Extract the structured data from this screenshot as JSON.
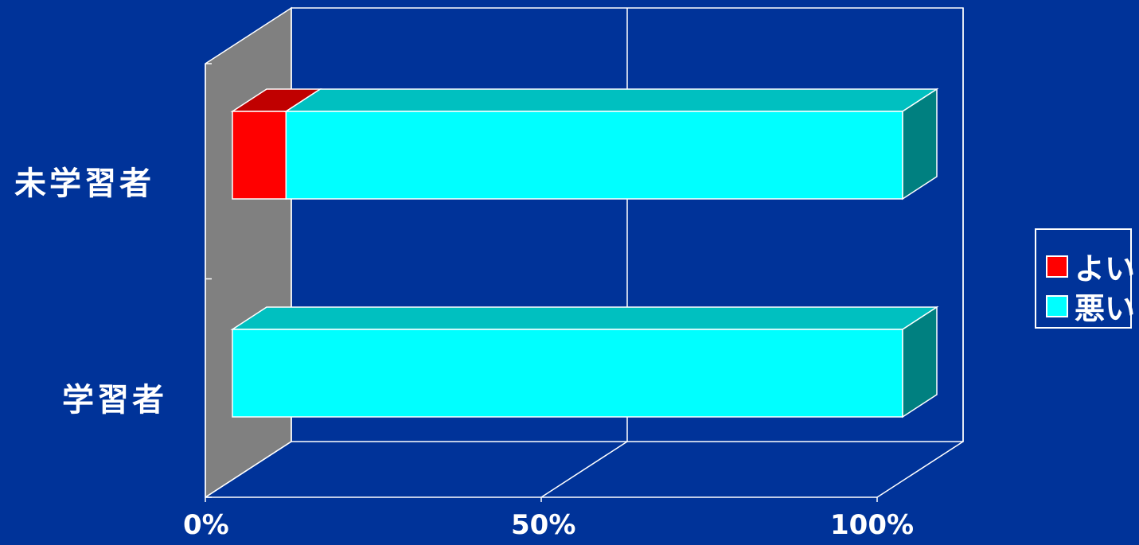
{
  "chart_data": {
    "type": "bar",
    "orientation": "horizontal",
    "stacked": "percent",
    "three_d": true,
    "categories": [
      "未学習者",
      "学習者"
    ],
    "series": [
      {
        "name": "よい",
        "values": [
          8,
          0
        ],
        "color": "#ff0000",
        "top_color": "#c00000",
        "side_color": "#900000"
      },
      {
        "name": "悪い",
        "values": [
          92,
          100
        ],
        "color": "#00ffff",
        "top_color": "#00c0c0",
        "side_color": "#008080"
      }
    ],
    "x_ticks": [
      "0%",
      "50%",
      "100%"
    ],
    "xlim": [
      0,
      100
    ],
    "grid": true,
    "legend_position": "right"
  },
  "colors": {
    "background": "#003399",
    "wall": "#808080",
    "lines": "#ffffff"
  }
}
